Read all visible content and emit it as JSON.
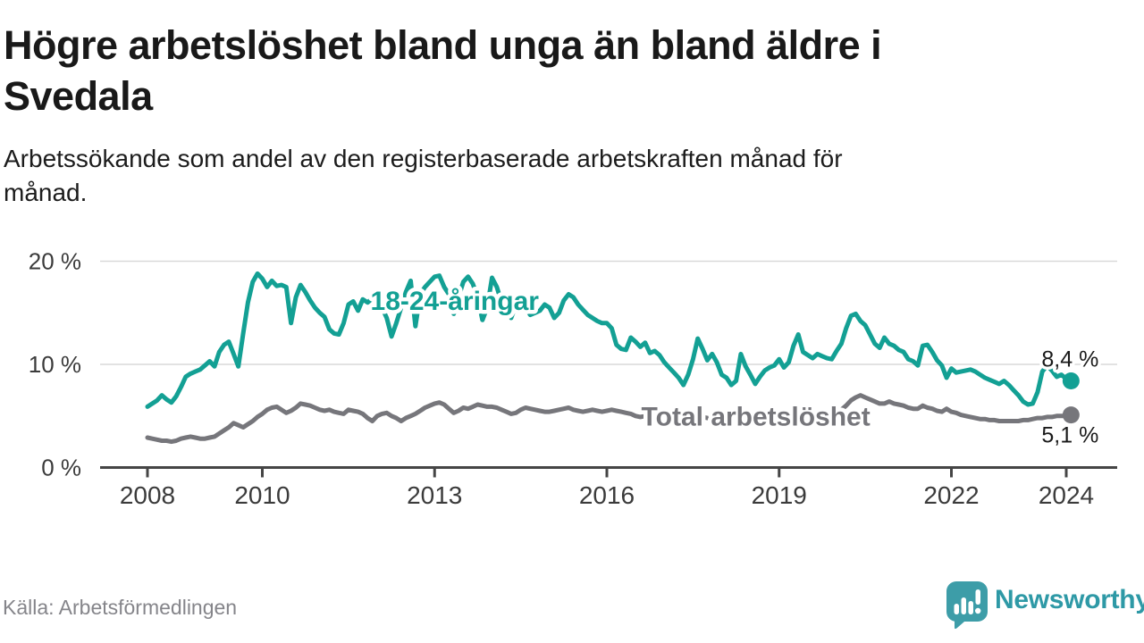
{
  "header": {
    "title_line1": "Högre arbetslöshet bland unga än bland äldre i",
    "title_line2": "Svedala",
    "subtitle_line1": "Arbetssökande som andel av den registerbaserade arbetskraften månad för",
    "subtitle_line2": "månad."
  },
  "footer": {
    "source": "Källa: Arbetsförmedlingen",
    "brand_name": "Newsworthy",
    "brand_color": "#3d9da8"
  },
  "chart_data": {
    "type": "line",
    "unit": "%",
    "x_start_year": 2008,
    "x_step_months": 1,
    "x_end_year": 2024.08,
    "x_ticks": [
      2008,
      2010,
      2013,
      2016,
      2019,
      2022,
      2024
    ],
    "y_ticks": [
      {
        "value": 0,
        "label": "0 %"
      },
      {
        "value": 10,
        "label": "10 %"
      },
      {
        "value": 20,
        "label": "20 %"
      }
    ],
    "ylim": [
      0,
      21
    ],
    "grid": "horizontal",
    "legend_position": "inline-labels",
    "colors": {
      "grid": "#d9d9d9",
      "axis": "#454545",
      "axis_text": "#3b3b3b",
      "end_label_text": "#1a1a1a"
    },
    "series": [
      {
        "name": "18-24-åringar",
        "color": "#13a094",
        "label_anchor": {
          "year": 2013.35,
          "value": 15.3,
          "align": "middle"
        },
        "end_label": "8,4 %",
        "end_value": 8.4,
        "end_label_side": "above",
        "values": [
          5.9,
          6.2,
          6.5,
          7.0,
          6.6,
          6.3,
          6.9,
          7.8,
          8.8,
          9.1,
          9.3,
          9.5,
          9.9,
          10.3,
          9.8,
          11.2,
          11.9,
          12.2,
          11.0,
          9.8,
          13.0,
          16.0,
          18.0,
          18.8,
          18.3,
          17.5,
          18.1,
          17.6,
          17.7,
          17.5,
          14.0,
          16.5,
          17.7,
          17.0,
          16.2,
          15.5,
          15.0,
          14.6,
          13.4,
          13.0,
          12.9,
          14.0,
          15.8,
          16.1,
          15.2,
          16.3,
          16.0,
          16.4,
          16.6,
          15.5,
          14.5,
          12.7,
          14.0,
          15.5,
          17.0,
          18.1,
          13.7,
          16.8,
          17.5,
          18.0,
          18.5,
          18.6,
          17.5,
          16.8,
          14.9,
          16.5,
          18.0,
          18.5,
          17.8,
          16.5,
          14.3,
          15.5,
          18.4,
          17.5,
          16.0,
          15.2,
          14.5,
          15.8,
          16.2,
          15.5,
          14.8,
          15.0,
          15.2,
          15.8,
          15.5,
          14.5,
          15.0,
          16.2,
          16.8,
          16.5,
          15.8,
          15.3,
          14.8,
          14.5,
          14.2,
          14.0,
          14.0,
          13.5,
          11.9,
          11.5,
          11.4,
          12.6,
          12.2,
          11.7,
          12.1,
          11.1,
          11.3,
          10.9,
          10.2,
          9.7,
          9.2,
          8.7,
          8.0,
          9.0,
          10.5,
          12.5,
          11.5,
          10.4,
          11.0,
          10.2,
          9.0,
          8.7,
          8.0,
          8.4,
          11.0,
          9.8,
          9.0,
          8.1,
          8.8,
          9.4,
          9.7,
          9.9,
          10.5,
          9.7,
          10.2,
          11.8,
          12.9,
          11.2,
          10.9,
          10.6,
          11.0,
          10.8,
          10.6,
          10.5,
          11.3,
          12.0,
          13.5,
          14.7,
          14.9,
          14.2,
          13.8,
          12.9,
          12.0,
          11.6,
          12.6,
          12.0,
          11.8,
          11.4,
          11.2,
          10.5,
          10.3,
          9.9,
          11.8,
          11.9,
          11.2,
          10.4,
          9.9,
          8.7,
          9.6,
          9.2,
          9.3,
          9.4,
          9.5,
          9.3,
          9.0,
          8.7,
          8.5,
          8.3,
          8.1,
          8.4,
          8.0,
          7.5,
          7.0,
          6.4,
          6.1,
          6.2,
          7.3,
          9.3,
          9.9,
          9.4,
          8.8,
          9.0,
          8.6,
          8.4
        ]
      },
      {
        "name": "Total arbetslöshet",
        "color": "#76767b",
        "label_anchor": {
          "year": 2016.6,
          "value": 4.05,
          "align": "start"
        },
        "end_label": "5,1 %",
        "end_value": 5.1,
        "end_label_side": "below",
        "values": [
          2.9,
          2.8,
          2.7,
          2.6,
          2.6,
          2.5,
          2.6,
          2.8,
          2.9,
          3.0,
          2.9,
          2.8,
          2.8,
          2.9,
          3.0,
          3.3,
          3.6,
          3.9,
          4.3,
          4.1,
          3.9,
          4.2,
          4.5,
          4.9,
          5.2,
          5.6,
          5.8,
          5.9,
          5.6,
          5.3,
          5.5,
          5.8,
          6.2,
          6.1,
          6.0,
          5.8,
          5.6,
          5.5,
          5.6,
          5.4,
          5.3,
          5.2,
          5.6,
          5.5,
          5.4,
          5.2,
          4.8,
          4.5,
          5.0,
          5.2,
          5.3,
          5.0,
          4.8,
          4.5,
          4.8,
          5.0,
          5.2,
          5.5,
          5.8,
          6.0,
          6.2,
          6.3,
          6.1,
          5.7,
          5.3,
          5.5,
          5.8,
          5.7,
          5.9,
          6.1,
          6.0,
          5.9,
          5.9,
          5.8,
          5.6,
          5.4,
          5.2,
          5.3,
          5.6,
          5.8,
          5.7,
          5.6,
          5.5,
          5.4,
          5.4,
          5.5,
          5.6,
          5.7,
          5.8,
          5.6,
          5.5,
          5.4,
          5.5,
          5.6,
          5.5,
          5.4,
          5.5,
          5.6,
          5.5,
          5.4,
          5.3,
          5.2,
          5.0,
          4.9,
          5.0,
          5.1,
          5.0,
          4.9,
          4.9,
          4.8,
          4.8,
          4.7,
          4.7,
          4.8,
          4.9,
          5.0,
          4.9,
          4.8,
          4.8,
          4.7,
          4.7,
          4.6,
          4.6,
          4.5,
          4.5,
          4.6,
          4.7,
          4.6,
          4.5,
          4.4,
          4.4,
          4.5,
          4.5,
          4.6,
          4.6,
          4.7,
          4.8,
          4.7,
          4.8,
          4.9,
          4.8,
          4.9,
          5.0,
          5.2,
          5.4,
          5.6,
          6.0,
          6.5,
          6.8,
          7.0,
          6.8,
          6.6,
          6.4,
          6.2,
          6.2,
          6.4,
          6.2,
          6.1,
          6.0,
          5.8,
          5.7,
          5.7,
          6.0,
          5.8,
          5.7,
          5.5,
          5.4,
          5.7,
          5.4,
          5.3,
          5.1,
          5.0,
          4.9,
          4.8,
          4.7,
          4.7,
          4.6,
          4.6,
          4.5,
          4.5,
          4.5,
          4.5,
          4.5,
          4.6,
          4.6,
          4.7,
          4.8,
          4.8,
          4.9,
          4.9,
          5.0,
          5.0,
          5.0,
          5.1
        ]
      }
    ]
  }
}
